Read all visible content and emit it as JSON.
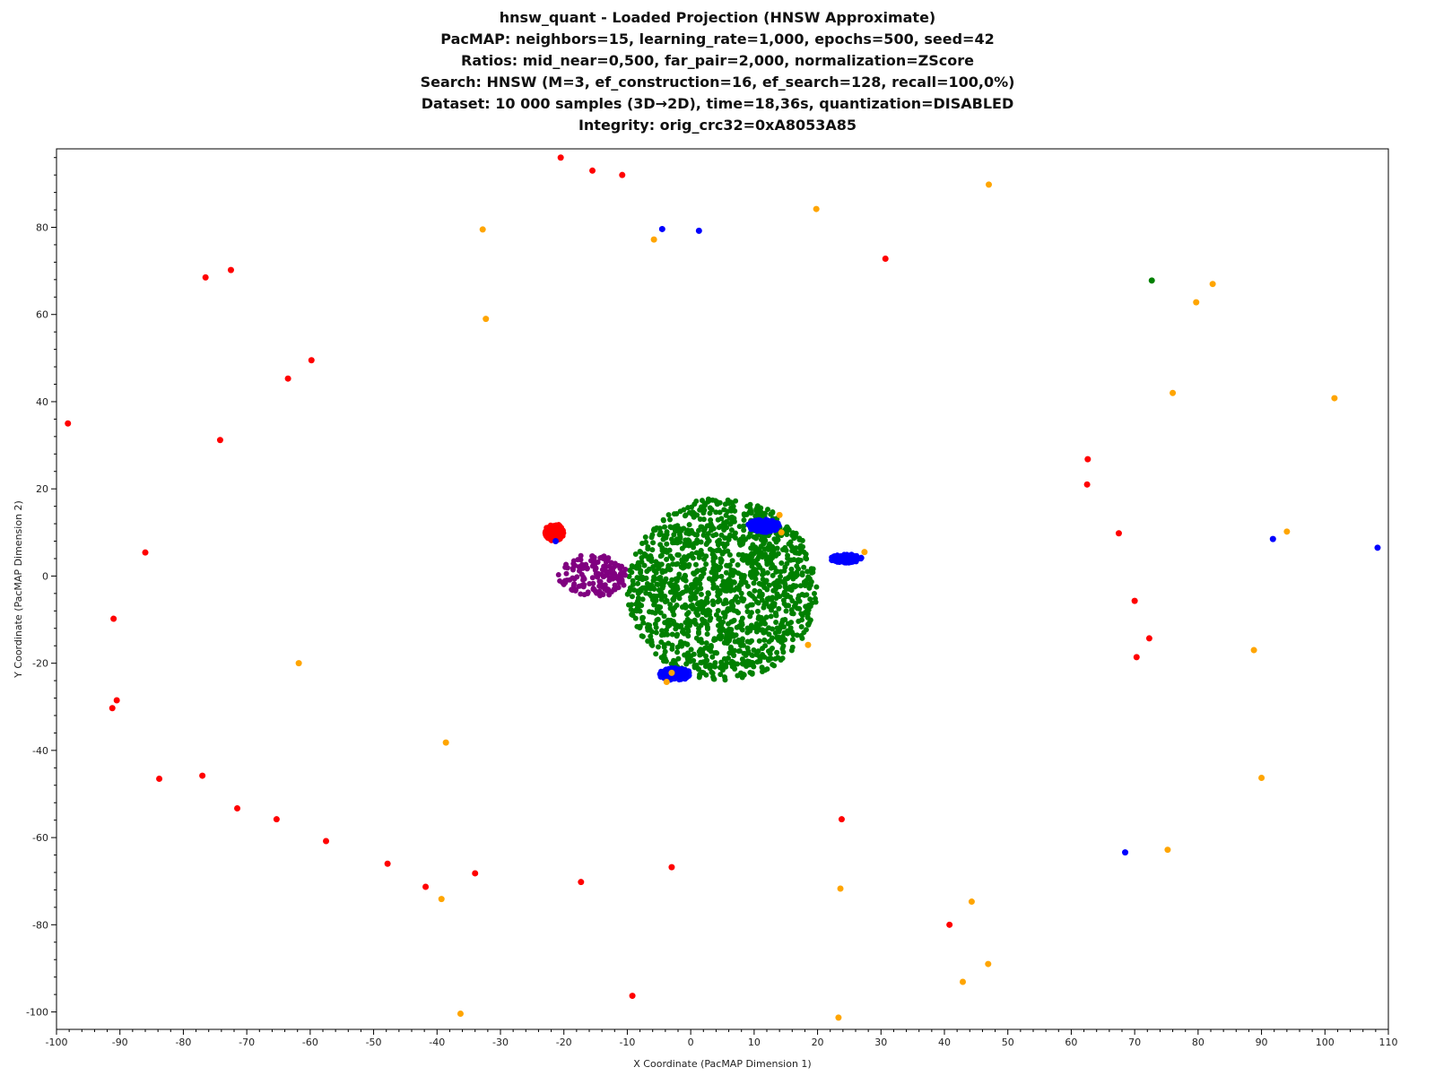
{
  "chart_data": {
    "type": "scatter",
    "title_lines": [
      "hnsw_quant - Loaded Projection (HNSW Approximate)",
      "PacMAP: neighbors=15, learning_rate=1,000, epochs=500, seed=42",
      "Ratios: mid_near=0,500, far_pair=2,000, normalization=ZScore",
      "Search: HNSW (M=3, ef_construction=16, ef_search=128, recall=100,0%)",
      "Dataset: 10 000 samples (3D→2D), time=18,36s, quantization=DISABLED",
      "Integrity: orig_crc32=0xA8053A85"
    ],
    "xlabel": "X Coordinate (PacMAP Dimension 1)",
    "ylabel": "Y Coordinate (PacMAP Dimension 2)",
    "xlim": [
      -100,
      110
    ],
    "ylim": [
      -104,
      98
    ],
    "xticks": [
      -100,
      -90,
      -80,
      -70,
      -60,
      -50,
      -40,
      -30,
      -20,
      -10,
      0,
      10,
      20,
      30,
      40,
      50,
      60,
      70,
      80,
      90,
      100,
      110
    ],
    "yticks": [
      -100,
      -80,
      -60,
      -40,
      -20,
      0,
      20,
      40,
      60,
      80
    ],
    "grid": false,
    "legend": "none",
    "series": [
      {
        "color": "#ff0000",
        "points": [
          [
            -20.5,
            96
          ],
          [
            -15.5,
            93
          ],
          [
            -10.8,
            92
          ],
          [
            -76.5,
            68.5
          ],
          [
            -72.5,
            70.2
          ],
          [
            30.7,
            72.8
          ],
          [
            -63.5,
            45.3
          ],
          [
            -59.8,
            49.5
          ],
          [
            -98.2,
            35
          ],
          [
            -74.2,
            31.2
          ],
          [
            -86,
            5.4
          ],
          [
            -91,
            -9.8
          ],
          [
            -90.5,
            -28.5
          ],
          [
            -91.2,
            -30.3
          ],
          [
            -83.8,
            -46.5
          ],
          [
            -77,
            -45.8
          ],
          [
            -71.5,
            -53.3
          ],
          [
            -65.3,
            -55.8
          ],
          [
            -57.5,
            -60.8
          ],
          [
            -47.8,
            -66
          ],
          [
            -41.8,
            -71.3
          ],
          [
            -34,
            -68.2
          ],
          [
            -17.3,
            -70.2
          ],
          [
            -3,
            -66.8
          ],
          [
            -9.2,
            -96.3
          ],
          [
            23.8,
            -55.8
          ],
          [
            40.8,
            -80
          ],
          [
            62.6,
            26.8
          ],
          [
            62.5,
            21
          ],
          [
            67.5,
            9.8
          ],
          [
            70,
            -5.7
          ],
          [
            72.3,
            -14.3
          ],
          [
            70.3,
            -18.6
          ]
        ]
      },
      {
        "color": "#ffa500",
        "points": [
          [
            -32.8,
            79.5
          ],
          [
            -5.8,
            77.2
          ],
          [
            19.8,
            84.2
          ],
          [
            47,
            89.8
          ],
          [
            -32.3,
            59
          ],
          [
            79.7,
            62.8
          ],
          [
            82.3,
            67
          ],
          [
            76,
            42
          ],
          [
            101.5,
            40.8
          ],
          [
            94,
            10.2
          ],
          [
            88.8,
            -17
          ],
          [
            -61.8,
            -20
          ],
          [
            -38.6,
            -38.2
          ],
          [
            90,
            -46.3
          ],
          [
            75.2,
            -62.8
          ],
          [
            23.6,
            -71.7
          ],
          [
            44.3,
            -74.7
          ],
          [
            -39.3,
            -74.1
          ],
          [
            46.9,
            -89
          ],
          [
            42.9,
            -93.1
          ],
          [
            23.3,
            -101.3
          ],
          [
            -36.3,
            -100.4
          ],
          [
            14,
            14
          ],
          [
            14.3,
            10
          ],
          [
            27.4,
            5.5
          ],
          [
            18.5,
            -15.8
          ],
          [
            -3,
            -22.2
          ],
          [
            -3.8,
            -24.3
          ]
        ]
      },
      {
        "color": "#0000ff",
        "points": [
          [
            -4.5,
            79.6
          ],
          [
            1.3,
            79.2
          ],
          [
            91.8,
            8.5
          ],
          [
            108.3,
            6.5
          ],
          [
            68.5,
            -63.4
          ],
          [
            -21.3,
            8
          ]
        ]
      },
      {
        "color": "#008000",
        "points": [
          [
            72.7,
            67.8
          ]
        ]
      }
    ],
    "clusters": [
      {
        "color": "#008000",
        "x": [
          -10,
          20
        ],
        "y": [
          -24,
          18
        ]
      },
      {
        "color": "#800080",
        "x": [
          -21,
          -10
        ],
        "y": [
          -5,
          5
        ]
      },
      {
        "color": "#ff0000",
        "x": [
          -23,
          -20
        ],
        "y": [
          8,
          12
        ]
      },
      {
        "color": "#0000ff",
        "x": [
          9,
          14
        ],
        "y": [
          10,
          13
        ]
      },
      {
        "color": "#0000ff",
        "x": [
          22,
          27
        ],
        "y": [
          3,
          5
        ]
      },
      {
        "color": "#0000ff",
        "x": [
          -5,
          0
        ],
        "y": [
          -24,
          -21
        ]
      }
    ]
  }
}
